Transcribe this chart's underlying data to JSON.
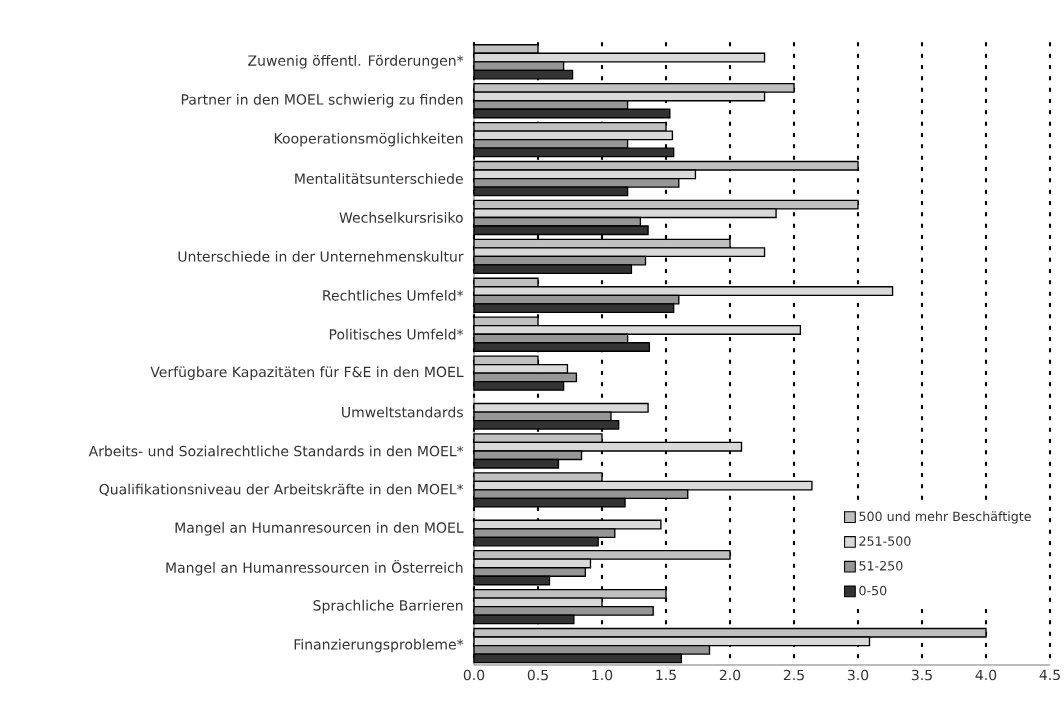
{
  "chart_data": {
    "type": "bar",
    "orientation": "horizontal",
    "categories": [
      "Zuwenig öffentl. Förderungen*",
      "Partner in den MOEL schwierig zu finden",
      "Kooperationsmöglichkeiten",
      "Mentalitätsunterschiede",
      "Wechselkursrisiko",
      "Unterschiede in der Unternehmenskultur",
      "Rechtliches Umfeld*",
      "Politisches Umfeld*",
      "Verfügbare Kapazitäten für F&E in den MOEL",
      "Umweltstandards",
      "Arbeits- und Sozialrechtliche Standards in den MOEL*",
      "Qualifikationsniveau der Arbeitskräfte in den MOEL*",
      "Mangel an Humanresourcen in den MOEL",
      "Mangel an Humanressourcen in Österreich",
      "Sprachliche Barrieren",
      "Finanzierungsprobleme*"
    ],
    "series": [
      {
        "name": "500 und mehr Beschäftigte",
        "color": "#c0c0c0",
        "values": [
          0.5,
          2.5,
          1.5,
          3.0,
          3.0,
          2.0,
          0.5,
          0.5,
          0.5,
          null,
          1.0,
          1.0,
          null,
          2.0,
          1.5,
          4.0
        ]
      },
      {
        "name": "251-500",
        "color": "#d9d9d9",
        "values": [
          2.27,
          2.27,
          1.55,
          1.73,
          2.36,
          2.27,
          3.27,
          2.55,
          0.73,
          1.36,
          2.09,
          2.64,
          1.46,
          0.91,
          1.0,
          3.09
        ]
      },
      {
        "name": "51-250",
        "color": "#969696",
        "values": [
          0.7,
          1.2,
          1.2,
          1.6,
          1.3,
          1.34,
          1.6,
          1.2,
          0.8,
          1.07,
          0.84,
          1.67,
          1.1,
          0.87,
          1.4,
          1.84
        ]
      },
      {
        "name": "0-50",
        "color": "#333333",
        "values": [
          0.77,
          1.53,
          1.56,
          1.2,
          1.36,
          1.23,
          1.56,
          1.37,
          0.7,
          1.13,
          0.66,
          1.18,
          0.97,
          0.59,
          0.78,
          1.62
        ]
      }
    ],
    "xlim": [
      0,
      4.5
    ],
    "xticks": [
      {
        "value": 0,
        "label": "0.0"
      },
      {
        "value": 0.5,
        "label": "0.5"
      },
      {
        "value": 1,
        "label": "1.0"
      },
      {
        "value": 1.5,
        "label": "1.5"
      },
      {
        "value": 2,
        "label": "2.0"
      },
      {
        "value": 2.5,
        "label": "2.5"
      },
      {
        "value": 3,
        "label": "3.0"
      },
      {
        "value": 3.5,
        "label": "3.5"
      },
      {
        "value": 4,
        "label": "4.0"
      },
      {
        "value": 4.5,
        "label": "4.5"
      }
    ],
    "grid": "x",
    "legend": "bottom right"
  }
}
